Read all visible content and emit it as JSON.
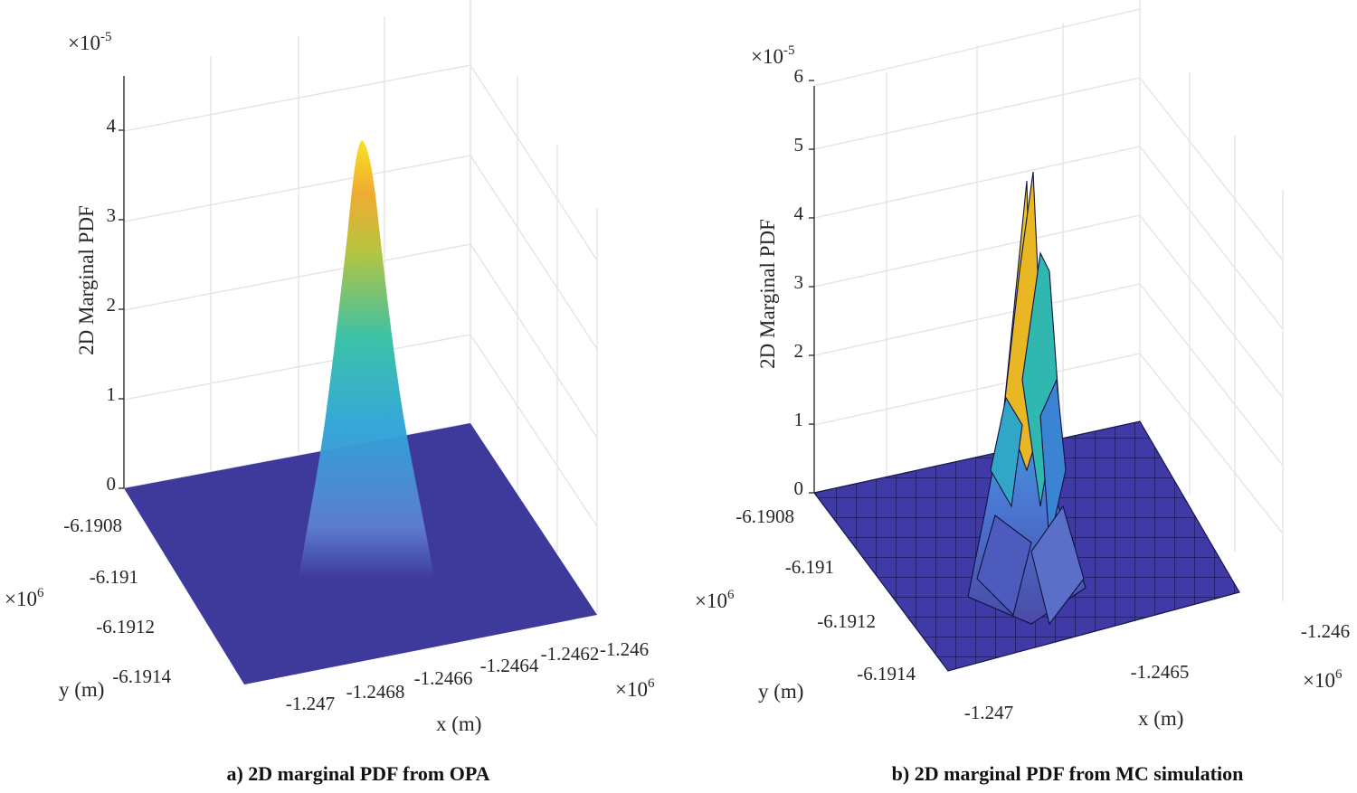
{
  "chart_data": [
    {
      "type": "surface",
      "caption": "a) 2D marginal PDF from OPA",
      "zlabel": "2D Marginal PDF",
      "xlabel": "x (m)",
      "ylabel": "y (m)",
      "z_exponent": "×10",
      "z_exponent_power": "-5",
      "x_exponent": "×10",
      "x_exponent_power": "6",
      "y_exponent": "×10",
      "y_exponent_power": "6",
      "z_ticks": [
        "0",
        "1",
        "2",
        "3",
        "4"
      ],
      "x_ticks": [
        "-1.247",
        "-1.2468",
        "-1.2466",
        "-1.2464",
        "-1.2462",
        "-1.246"
      ],
      "y_ticks": [
        "-6.1908",
        "-6.191",
        "-6.1912",
        "-6.1914"
      ],
      "zlim": [
        0,
        4.5
      ],
      "peak_value": 3.9,
      "colormap": [
        "#3e2b8f",
        "#3a62c9",
        "#1fa6c8",
        "#3fbf9a",
        "#a6c43a",
        "#f5d215"
      ]
    },
    {
      "type": "surface",
      "caption": "b) 2D marginal PDF from MC simulation",
      "zlabel": "2D Marginal PDF",
      "xlabel": "x (m)",
      "ylabel": "y (m)",
      "z_exponent": "×10",
      "z_exponent_power": "-5",
      "y_exponent": "×10",
      "y_exponent_power": "6",
      "x_exponent": "×10",
      "x_exponent_power": "6",
      "z_ticks": [
        "0",
        "1",
        "2",
        "3",
        "4",
        "5",
        "6"
      ],
      "x_ticks": [
        "-1.247",
        "-1.2465",
        "-1.246"
      ],
      "y_ticks": [
        "-6.1908",
        "-6.191",
        "-6.1912",
        "-6.1914"
      ],
      "zlim": [
        0,
        6
      ],
      "peak_value": 4.4,
      "colormap": [
        "#3e2b8f",
        "#3a62c9",
        "#1fa6c8",
        "#3fbf9a",
        "#a6c43a",
        "#f5d215"
      ]
    }
  ]
}
